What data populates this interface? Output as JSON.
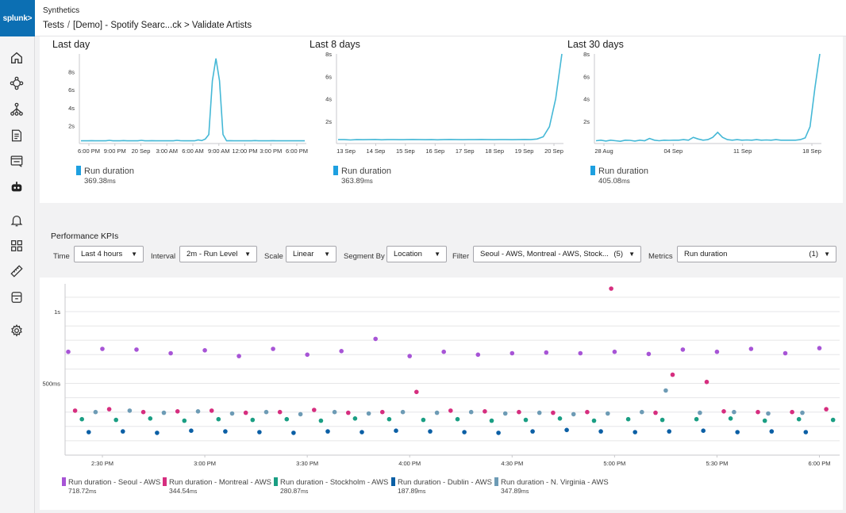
{
  "nav": {
    "logo_text": "splunk>",
    "items": [
      {
        "name": "home-icon"
      },
      {
        "name": "apm-icon"
      },
      {
        "name": "hierarchy-icon"
      },
      {
        "name": "document-icon"
      },
      {
        "name": "browser-icon"
      },
      {
        "name": "robot-icon"
      },
      {
        "name": "bell-icon"
      },
      {
        "name": "dashboard-icon"
      },
      {
        "name": "ruler-icon"
      },
      {
        "name": "database-icon"
      },
      {
        "name": "gear-icon"
      }
    ]
  },
  "header": {
    "app_name": "Synthetics",
    "breadcrumb_root": "Tests",
    "breadcrumb_sep": "/",
    "breadcrumb_path": "[Demo] - Spotify Searc...ck > Validate Artists"
  },
  "colors": {
    "accent": "#0c6fb3",
    "line": "#45b8d6",
    "legend_swatch": "#1ea0e0",
    "seoul": "#a754d6",
    "montreal": "#d62e7f",
    "stockholm": "#1a9e83",
    "dublin": "#0b5fa5",
    "virginia": "#6d9bb5"
  },
  "mini_charts": [
    {
      "title": "Last day",
      "legend_label": "Run duration",
      "legend_value": "369.38",
      "legend_unit": "ms",
      "chart_data": {
        "type": "line",
        "y_ticks": [
          "2s",
          "4s",
          "6s",
          "8s"
        ],
        "y_max": 10,
        "x_ticks": [
          "6:00 PM",
          "9:00 PM",
          "20 Sep",
          "3:00 AM",
          "6:00 AM",
          "9:00 AM",
          "12:00 PM",
          "3:00 PM",
          "6:00 PM"
        ],
        "values": [
          0.3,
          0.3,
          0.3,
          0.32,
          0.3,
          0.3,
          0.3,
          0.3,
          0.35,
          0.3,
          0.3,
          0.3,
          0.33,
          0.3,
          0.3,
          0.3,
          0.3,
          0.35,
          0.3,
          0.3,
          0.32,
          0.3,
          0.3,
          0.3,
          0.3,
          0.3,
          0.3,
          0.35,
          0.32,
          0.3,
          0.3,
          0.3,
          0.3,
          0.4,
          0.33,
          0.5,
          1.0,
          7.0,
          9.5,
          7.0,
          1.0,
          0.3,
          0.32,
          0.3,
          0.3,
          0.3,
          0.3,
          0.3,
          0.3,
          0.33,
          0.3,
          0.3,
          0.3,
          0.3,
          0.32,
          0.3,
          0.3,
          0.3,
          0.3,
          0.3,
          0.3,
          0.3,
          0.3,
          0.3
        ]
      }
    },
    {
      "title": "Last 8 days",
      "legend_label": "Run duration",
      "legend_value": "363.89",
      "legend_unit": "ms",
      "chart_data": {
        "type": "line",
        "y_ticks": [
          "2s",
          "4s",
          "6s",
          "8s"
        ],
        "y_max": 8,
        "x_ticks": [
          "13 Sep",
          "14 Sep",
          "15 Sep",
          "16 Sep",
          "17 Sep",
          "18 Sep",
          "19 Sep",
          "20 Sep"
        ],
        "values": [
          0.35,
          0.35,
          0.32,
          0.35,
          0.34,
          0.35,
          0.36,
          0.33,
          0.35,
          0.35,
          0.34,
          0.35,
          0.36,
          0.35,
          0.34,
          0.35,
          0.33,
          0.35,
          0.36,
          0.35,
          0.34,
          0.35,
          0.35,
          0.36,
          0.35,
          0.34,
          0.35,
          0.35,
          0.34,
          0.35,
          0.36,
          0.35,
          0.4,
          0.6,
          1.5,
          4.0,
          8.0
        ]
      }
    },
    {
      "title": "Last 30 days",
      "legend_label": "Run duration",
      "legend_value": "405.08",
      "legend_unit": "ms",
      "chart_data": {
        "type": "line",
        "y_ticks": [
          "2s",
          "4s",
          "6s",
          "8s"
        ],
        "y_max": 8,
        "x_ticks": [
          "28 Aug",
          "04 Sep",
          "11 Sep",
          "18 Sep"
        ],
        "values": [
          0.25,
          0.3,
          0.22,
          0.3,
          0.25,
          0.2,
          0.3,
          0.28,
          0.22,
          0.3,
          0.25,
          0.45,
          0.3,
          0.25,
          0.3,
          0.28,
          0.3,
          0.3,
          0.35,
          0.3,
          0.55,
          0.4,
          0.3,
          0.35,
          0.55,
          1.0,
          0.55,
          0.35,
          0.3,
          0.35,
          0.3,
          0.32,
          0.3,
          0.35,
          0.3,
          0.32,
          0.3,
          0.35,
          0.3,
          0.3,
          0.3,
          0.3,
          0.35,
          0.5,
          1.5,
          5.0,
          8.0
        ]
      }
    }
  ],
  "kpi": {
    "title": "Performance KPIs",
    "time_label": "Time",
    "time_value": "Last 4 hours",
    "interval_label": "Interval",
    "interval_value": "2m - Run Level",
    "scale_label": "Scale",
    "scale_value": "Linear",
    "segment_label": "Segment By",
    "segment_value": "Location",
    "filter_label": "Filter",
    "filter_value": "Seoul - AWS, Montreal - AWS, Stock...",
    "filter_count": "(5)",
    "metrics_label": "Metrics",
    "metrics_value": "Run duration",
    "metrics_count": "(1)"
  },
  "chart_data": {
    "type": "scatter",
    "y_ticks": [
      "500ms",
      "1s"
    ],
    "y_tick_values": [
      500,
      1000
    ],
    "y_range": [
      0,
      1160
    ],
    "x_ticks": [
      "2:30 PM",
      "3:00 PM",
      "3:30 PM",
      "4:00 PM",
      "4:30 PM",
      "5:00 PM",
      "5:30 PM",
      "6:00 PM"
    ],
    "x_tick_values": [
      15,
      45,
      75,
      105,
      135,
      165,
      195,
      225
    ],
    "x_range": [
      5,
      230
    ],
    "series": [
      {
        "name": "Run duration - Seoul - AWS",
        "key": "seoul",
        "summary_value": "718.72",
        "summary_unit": "ms",
        "points": [
          [
            5,
            720
          ],
          [
            15,
            740
          ],
          [
            25,
            735
          ],
          [
            35,
            710
          ],
          [
            45,
            730
          ],
          [
            55,
            690
          ],
          [
            65,
            740
          ],
          [
            75,
            700
          ],
          [
            85,
            725
          ],
          [
            95,
            810
          ],
          [
            105,
            690
          ],
          [
            115,
            720
          ],
          [
            125,
            700
          ],
          [
            135,
            710
          ],
          [
            145,
            715
          ],
          [
            155,
            710
          ],
          [
            165,
            720
          ],
          [
            175,
            705
          ],
          [
            185,
            735
          ],
          [
            195,
            720
          ],
          [
            205,
            740
          ],
          [
            215,
            710
          ],
          [
            225,
            745
          ]
        ]
      },
      {
        "name": "Run duration - Montreal - AWS",
        "key": "montreal",
        "summary_value": "344.54",
        "summary_unit": "ms",
        "points": [
          [
            7,
            310
          ],
          [
            17,
            320
          ],
          [
            27,
            300
          ],
          [
            37,
            305
          ],
          [
            47,
            310
          ],
          [
            57,
            295
          ],
          [
            67,
            300
          ],
          [
            77,
            315
          ],
          [
            87,
            295
          ],
          [
            97,
            300
          ],
          [
            107,
            440
          ],
          [
            117,
            310
          ],
          [
            127,
            305
          ],
          [
            137,
            300
          ],
          [
            147,
            295
          ],
          [
            157,
            300
          ],
          [
            164,
            1160
          ],
          [
            177,
            295
          ],
          [
            182,
            560
          ],
          [
            192,
            510
          ],
          [
            197,
            305
          ],
          [
            207,
            300
          ],
          [
            217,
            300
          ],
          [
            227,
            320
          ]
        ]
      },
      {
        "name": "Run duration - Stockholm - AWS",
        "key": "stockholm",
        "summary_value": "280.87",
        "summary_unit": "ms",
        "points": [
          [
            9,
            250
          ],
          [
            19,
            245
          ],
          [
            29,
            255
          ],
          [
            39,
            240
          ],
          [
            49,
            250
          ],
          [
            59,
            245
          ],
          [
            69,
            250
          ],
          [
            79,
            240
          ],
          [
            89,
            255
          ],
          [
            99,
            250
          ],
          [
            109,
            245
          ],
          [
            119,
            250
          ],
          [
            129,
            240
          ],
          [
            139,
            245
          ],
          [
            149,
            255
          ],
          [
            159,
            240
          ],
          [
            169,
            250
          ],
          [
            179,
            245
          ],
          [
            189,
            250
          ],
          [
            199,
            255
          ],
          [
            209,
            240
          ],
          [
            219,
            250
          ],
          [
            229,
            245
          ]
        ]
      },
      {
        "name": "Run duration - Dublin - AWS",
        "key": "dublin",
        "summary_value": "187.89",
        "summary_unit": "ms",
        "points": [
          [
            11,
            160
          ],
          [
            21,
            165
          ],
          [
            31,
            155
          ],
          [
            41,
            170
          ],
          [
            51,
            165
          ],
          [
            61,
            160
          ],
          [
            71,
            155
          ],
          [
            81,
            165
          ],
          [
            91,
            160
          ],
          [
            101,
            170
          ],
          [
            111,
            165
          ],
          [
            121,
            160
          ],
          [
            131,
            155
          ],
          [
            141,
            165
          ],
          [
            151,
            175
          ],
          [
            161,
            165
          ],
          [
            171,
            160
          ],
          [
            181,
            165
          ],
          [
            191,
            170
          ],
          [
            201,
            160
          ],
          [
            211,
            165
          ],
          [
            221,
            160
          ]
        ]
      },
      {
        "name": "Run duration - N. Virginia - AWS",
        "key": "virginia",
        "summary_value": "347.89",
        "summary_unit": "ms",
        "points": [
          [
            13,
            300
          ],
          [
            23,
            310
          ],
          [
            33,
            295
          ],
          [
            43,
            305
          ],
          [
            53,
            290
          ],
          [
            63,
            300
          ],
          [
            73,
            285
          ],
          [
            83,
            300
          ],
          [
            93,
            290
          ],
          [
            103,
            300
          ],
          [
            113,
            295
          ],
          [
            123,
            300
          ],
          [
            133,
            290
          ],
          [
            143,
            295
          ],
          [
            153,
            285
          ],
          [
            163,
            290
          ],
          [
            173,
            300
          ],
          [
            180,
            450
          ],
          [
            190,
            295
          ],
          [
            200,
            300
          ],
          [
            210,
            290
          ],
          [
            220,
            295
          ]
        ]
      }
    ]
  }
}
